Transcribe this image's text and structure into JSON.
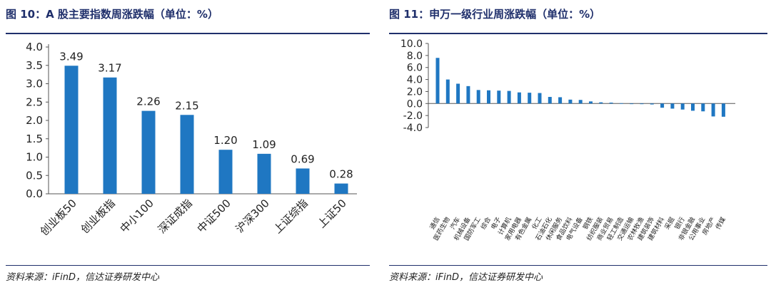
{
  "colors": {
    "bar": "#1f77c2",
    "title": "#1f2f6b",
    "axis": "#555555"
  },
  "left": {
    "title": "图 10：A 股主要指数周涨跌幅（单位：%）",
    "source": "资料来源：iFinD，信达证券研发中心"
  },
  "right": {
    "title": "图 11：申万一级行业周涨跌幅（单位：%）",
    "source": "资料来源：iFinD，信达证券研发中心"
  },
  "chart_data": [
    {
      "type": "bar",
      "title": "图 10：A 股主要指数周涨跌幅（单位：%）",
      "categories": [
        "创业板50",
        "创业板指",
        "中小100",
        "深证成指",
        "中证500",
        "沪深300",
        "上证综指",
        "上证50"
      ],
      "values": [
        3.49,
        3.17,
        2.26,
        2.15,
        1.2,
        1.09,
        0.69,
        0.28
      ],
      "value_labels": [
        "3.49",
        "3.17",
        "2.26",
        "2.15",
        "1.20",
        "1.09",
        "0.69",
        "0.28"
      ],
      "yticks": [
        "0.0",
        "0.5",
        "1.0",
        "1.5",
        "2.0",
        "2.5",
        "3.0",
        "3.5",
        "4.0"
      ],
      "ylim": [
        0,
        4
      ],
      "xlabel": "",
      "ylabel": ""
    },
    {
      "type": "bar",
      "title": "图 11：申万一级行业周涨跌幅（单位：%）",
      "categories": [
        "通信",
        "医药生物",
        "汽车",
        "机械设备",
        "国防军工",
        "综合",
        "电子",
        "计算机",
        "家用电器",
        "有色金属",
        "化工",
        "石油石化",
        "休闲服务",
        "食品饮料",
        "电气设备",
        "钢铁",
        "纺织服装",
        "商业贸易",
        "轻工制造",
        "交通运输",
        "农林牧渔",
        "建筑装饰",
        "建筑材料",
        "采掘",
        "银行",
        "非银金融",
        "公用事业",
        "房地产",
        "传媒"
      ],
      "values": [
        7.6,
        4.0,
        3.3,
        2.9,
        2.25,
        2.2,
        2.15,
        2.1,
        1.85,
        1.8,
        1.75,
        1.1,
        1.05,
        0.65,
        0.6,
        0.35,
        0.2,
        0.15,
        0.05,
        -0.05,
        -0.1,
        -0.15,
        -0.7,
        -0.85,
        -1.0,
        -1.2,
        -1.3,
        -2.15,
        -2.2
      ],
      "yticks": [
        "-4.0",
        "-2.0",
        "0.0",
        "2.0",
        "4.0",
        "6.0",
        "8.0",
        "10.0"
      ],
      "ylim": [
        -4,
        10
      ],
      "xlabel": "",
      "ylabel": ""
    }
  ]
}
